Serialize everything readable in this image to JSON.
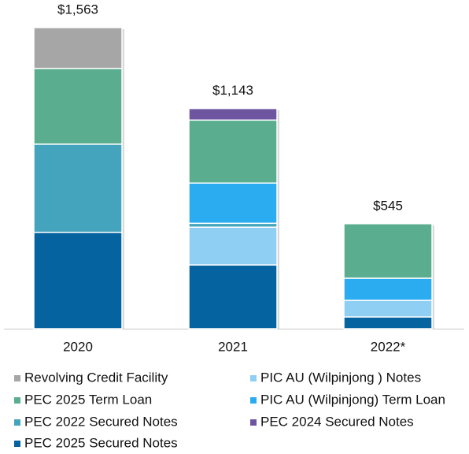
{
  "chart_data": {
    "type": "stacked-bar",
    "categories": [
      "2020",
      "2021",
      "2022*"
    ],
    "totals": [
      1563,
      1143,
      545
    ],
    "total_labels": [
      "$1,563",
      "$1,143",
      "$545"
    ],
    "series": [
      {
        "name": "Revolving Credit Facility",
        "color": "#a6a6a6",
        "values": [
          212,
          0,
          0
        ]
      },
      {
        "name": "PEC 2025 Term Loan",
        "color": "#5aae8f",
        "values": [
          393,
          327,
          283
        ]
      },
      {
        "name": "PEC 2022 Secured Notes",
        "color": "#45a4bd",
        "values": [
          458,
          20,
          0
        ]
      },
      {
        "name": "PEC 2025 Secured Notes",
        "color": "#0563a0",
        "values": [
          500,
          331,
          61
        ]
      },
      {
        "name": "PIC AU (Wilpinjong ) Notes",
        "color": "#90cff4",
        "values": [
          0,
          196,
          86
        ]
      },
      {
        "name": "PIC AU (Wilpinjong) Term Loan",
        "color": "#2cacf0",
        "values": [
          0,
          209,
          115
        ]
      },
      {
        "name": "PEC 2024 Secured Notes",
        "color": "#6e55a0",
        "values": [
          0,
          60,
          0
        ]
      }
    ]
  }
}
